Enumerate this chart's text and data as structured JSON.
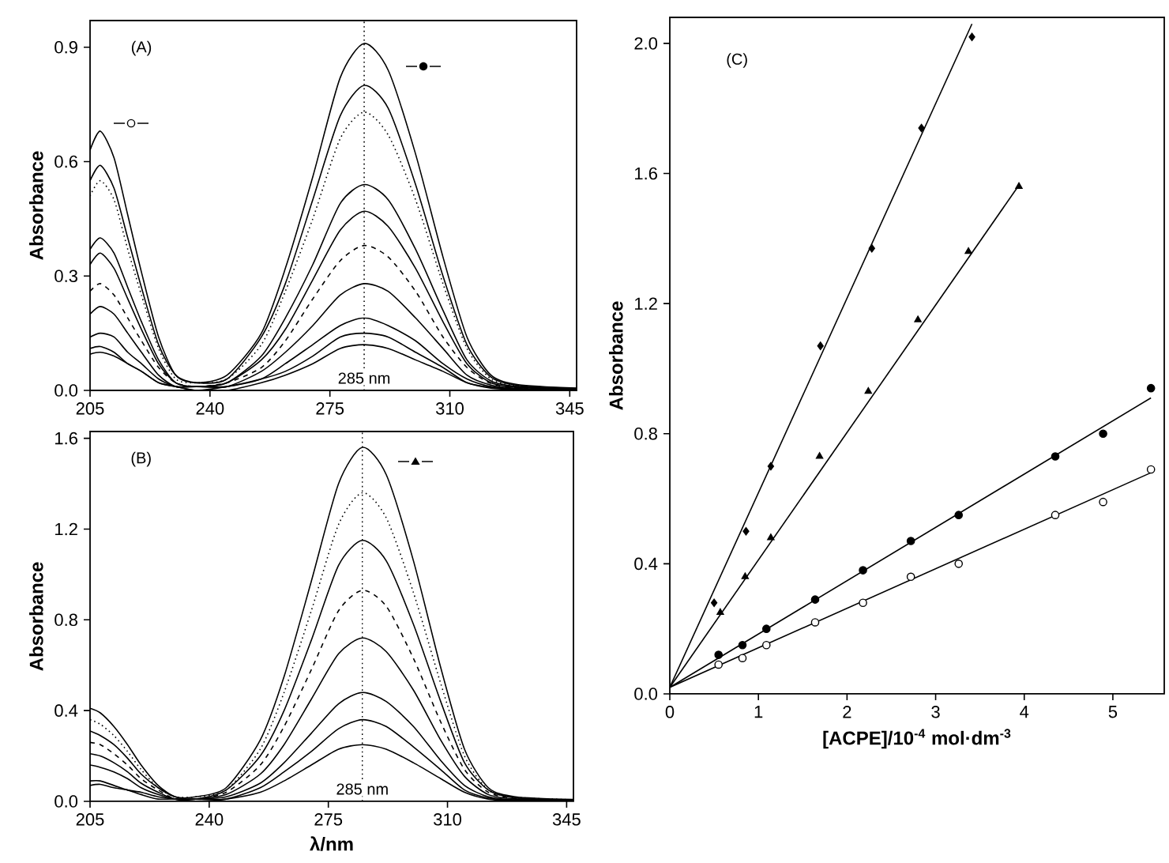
{
  "chart_data": [
    {
      "type": "line",
      "ylabel": "Absorbance",
      "annotations": [
        "(A)"
      ],
      "x": [
        205,
        208,
        212,
        216,
        220,
        225,
        230,
        236,
        245,
        255,
        262,
        270,
        278,
        285,
        292,
        300,
        308,
        315,
        322,
        330,
        347
      ],
      "xlim": [
        205,
        347
      ],
      "xticks": [
        205,
        240,
        275,
        310,
        345
      ],
      "ylim": [
        0,
        0.97
      ],
      "yticks": [
        {
          "value": 0,
          "label": "0.0"
        },
        {
          "value": 0.3,
          "label": "0.3"
        },
        {
          "value": 0.6,
          "label": "0.6"
        },
        {
          "value": 0.9,
          "label": "0.9"
        }
      ],
      "ref_lines": [
        {
          "axis": "x",
          "value": 285,
          "label": "285 nm",
          "line_style": "dotted"
        }
      ],
      "series": [
        {
          "color": "#000000",
          "line_style": "solid",
          "values": [
            0.63,
            0.68,
            0.61,
            0.46,
            0.31,
            0.14,
            0.04,
            0.02,
            0.04,
            0.15,
            0.32,
            0.56,
            0.82,
            0.91,
            0.84,
            0.62,
            0.35,
            0.14,
            0.04,
            0.015,
            0.006
          ]
        },
        {
          "color": "#000000",
          "line_style": "solid",
          "values": [
            0.55,
            0.59,
            0.53,
            0.4,
            0.27,
            0.12,
            0.04,
            0.02,
            0.03,
            0.14,
            0.28,
            0.5,
            0.72,
            0.8,
            0.74,
            0.54,
            0.3,
            0.12,
            0.035,
            0.013,
            0.005
          ]
        },
        {
          "color": "#000000",
          "line_style": "dotted",
          "values": [
            0.51,
            0.55,
            0.5,
            0.37,
            0.25,
            0.11,
            0.03,
            0.02,
            0.03,
            0.12,
            0.26,
            0.45,
            0.66,
            0.73,
            0.67,
            0.5,
            0.28,
            0.11,
            0.03,
            0.012,
            0.004
          ]
        },
        {
          "color": "#000000",
          "line_style": "solid",
          "values": [
            0.37,
            0.4,
            0.36,
            0.27,
            0.18,
            0.08,
            0.02,
            0.01,
            0.02,
            0.09,
            0.19,
            0.33,
            0.49,
            0.54,
            0.5,
            0.37,
            0.21,
            0.08,
            0.025,
            0.01,
            0.003
          ]
        },
        {
          "color": "#000000",
          "line_style": "solid",
          "values": [
            0.33,
            0.36,
            0.32,
            0.24,
            0.16,
            0.07,
            0.02,
            0.01,
            0.02,
            0.08,
            0.16,
            0.29,
            0.42,
            0.47,
            0.43,
            0.32,
            0.18,
            0.07,
            0.02,
            0.008,
            0.002
          ]
        },
        {
          "color": "#000000",
          "line_style": "dashed",
          "values": [
            0.26,
            0.28,
            0.25,
            0.19,
            0.13,
            0.06,
            0.02,
            0.01,
            0.02,
            0.06,
            0.13,
            0.24,
            0.34,
            0.38,
            0.35,
            0.26,
            0.14,
            0.06,
            0.018,
            0.007,
            0.002
          ]
        },
        {
          "color": "#000000",
          "line_style": "solid",
          "values": [
            0.2,
            0.22,
            0.2,
            0.15,
            0.1,
            0.04,
            0.01,
            0.01,
            0.01,
            0.05,
            0.1,
            0.17,
            0.25,
            0.28,
            0.26,
            0.19,
            0.11,
            0.04,
            0.014,
            0.005,
            0.001
          ]
        },
        {
          "color": "#000000",
          "line_style": "solid",
          "values": [
            0.14,
            0.15,
            0.14,
            0.1,
            0.07,
            0.03,
            0.01,
            0.01,
            0.01,
            0.03,
            0.07,
            0.12,
            0.17,
            0.19,
            0.17,
            0.13,
            0.07,
            0.03,
            0.01,
            0.004,
            0.001
          ]
        },
        {
          "color": "#000000",
          "line_style": "solid",
          "values": [
            0.11,
            0.115,
            0.1,
            0.07,
            0.05,
            0.02,
            0.01,
            0,
            0.01,
            0.03,
            0.05,
            0.09,
            0.14,
            0.15,
            0.14,
            0.1,
            0.06,
            0.02,
            0.008,
            0.003,
            0
          ]
        },
        {
          "color": "#000000",
          "line_style": "solid",
          "values": [
            0.095,
            0.1,
            0.09,
            0.07,
            0.05,
            0.02,
            0.01,
            0,
            0,
            0.02,
            0.04,
            0.07,
            0.11,
            0.12,
            0.11,
            0.08,
            0.05,
            0.02,
            0.006,
            0.002,
            0
          ]
        }
      ]
    },
    {
      "type": "line",
      "ylabel": "Absorbance",
      "xlabel": "λ/nm",
      "annotations": [
        "(B)"
      ],
      "x": [
        205,
        208,
        212,
        216,
        220,
        225,
        230,
        236,
        245,
        255,
        262,
        270,
        278,
        285,
        292,
        300,
        308,
        315,
        322,
        330,
        347
      ],
      "xlim": [
        205,
        347
      ],
      "xticks": [
        205,
        240,
        275,
        310,
        345
      ],
      "ylim": [
        0,
        1.63
      ],
      "yticks": [
        {
          "value": 0,
          "label": "0.0"
        },
        {
          "value": 0.4,
          "label": "0.4"
        },
        {
          "value": 0.8,
          "label": "0.8"
        },
        {
          "value": 1.2,
          "label": "1.2"
        },
        {
          "value": 1.6,
          "label": "1.6"
        }
      ],
      "ref_lines": [
        {
          "axis": "x",
          "value": 285,
          "label": "285 nm",
          "line_style": "dotted"
        }
      ],
      "series": [
        {
          "color": "#000000",
          "line_style": "solid",
          "values": [
            0.41,
            0.39,
            0.33,
            0.25,
            0.16,
            0.07,
            0.02,
            0.02,
            0.06,
            0.27,
            0.55,
            0.97,
            1.4,
            1.56,
            1.44,
            1.06,
            0.59,
            0.23,
            0.06,
            0.02,
            0.008
          ]
        },
        {
          "color": "#000000",
          "line_style": "dotted",
          "values": [
            0.36,
            0.34,
            0.29,
            0.22,
            0.14,
            0.06,
            0.02,
            0.02,
            0.05,
            0.23,
            0.48,
            0.84,
            1.22,
            1.36,
            1.25,
            0.92,
            0.52,
            0.2,
            0.05,
            0.018,
            0.007
          ]
        },
        {
          "color": "#000000",
          "line_style": "solid",
          "values": [
            0.31,
            0.29,
            0.25,
            0.19,
            0.12,
            0.06,
            0.02,
            0.01,
            0.05,
            0.2,
            0.4,
            0.71,
            1.04,
            1.15,
            1.06,
            0.78,
            0.44,
            0.17,
            0.05,
            0.015,
            0.006
          ]
        },
        {
          "color": "#000000",
          "line_style": "dashed",
          "values": [
            0.26,
            0.25,
            0.21,
            0.16,
            0.1,
            0.05,
            0.01,
            0.01,
            0.04,
            0.16,
            0.33,
            0.58,
            0.84,
            0.93,
            0.86,
            0.63,
            0.35,
            0.14,
            0.04,
            0.012,
            0.005
          ]
        },
        {
          "color": "#000000",
          "line_style": "solid",
          "values": [
            0.21,
            0.2,
            0.17,
            0.13,
            0.08,
            0.04,
            0.01,
            0.01,
            0.03,
            0.12,
            0.25,
            0.45,
            0.65,
            0.72,
            0.66,
            0.49,
            0.27,
            0.11,
            0.03,
            0.01,
            0.004
          ]
        },
        {
          "color": "#000000",
          "line_style": "solid",
          "values": [
            0.16,
            0.15,
            0.13,
            0.1,
            0.06,
            0.03,
            0.01,
            0.01,
            0.02,
            0.08,
            0.17,
            0.3,
            0.43,
            0.48,
            0.44,
            0.33,
            0.18,
            0.07,
            0.02,
            0.007,
            0.003
          ]
        },
        {
          "color": "#000000",
          "line_style": "solid",
          "values": [
            0.09,
            0.09,
            0.07,
            0.05,
            0.04,
            0.02,
            0.01,
            0.01,
            0.01,
            0.06,
            0.13,
            0.22,
            0.32,
            0.36,
            0.33,
            0.24,
            0.14,
            0.05,
            0.015,
            0.005,
            0.002
          ]
        },
        {
          "color": "#000000",
          "line_style": "solid",
          "values": [
            0.07,
            0.075,
            0.06,
            0.05,
            0.03,
            0.01,
            0.01,
            0,
            0.01,
            0.04,
            0.09,
            0.16,
            0.23,
            0.25,
            0.23,
            0.17,
            0.1,
            0.04,
            0.01,
            0.003,
            0
          ]
        }
      ]
    },
    {
      "type": "scatter",
      "ylabel": "Absorbance",
      "xlabel": "[ACPE]/10$^{-4}$ mol·dm$^{-3}$",
      "annotations": [
        "(C)"
      ],
      "xlim": [
        0,
        5.58
      ],
      "xticks": [
        0,
        1,
        2,
        3,
        4,
        5
      ],
      "ylim": [
        0,
        2.08
      ],
      "yticks": [
        {
          "value": 0,
          "label": "0.0"
        },
        {
          "value": 0.4,
          "label": "0.4"
        },
        {
          "value": 0.8,
          "label": "0.8"
        },
        {
          "value": 1.2,
          "label": "1.2"
        },
        {
          "value": 1.6,
          "label": "1.6"
        },
        {
          "value": 2.0,
          "label": "2.0"
        }
      ],
      "series": [
        {
          "type": "scatter",
          "marker": "diamond",
          "color": "#000000",
          "x": [
            0.5,
            0.86,
            1.14,
            1.7,
            2.28,
            2.84,
            3.41
          ],
          "values": [
            0.28,
            0.5,
            0.7,
            1.07,
            1.37,
            1.74,
            2.02
          ]
        },
        {
          "type": "scatter",
          "marker": "triangle",
          "color": "#000000",
          "x": [
            0.57,
            0.85,
            1.14,
            1.69,
            2.24,
            2.8,
            3.37,
            3.94
          ],
          "values": [
            0.25,
            0.36,
            0.48,
            0.73,
            0.93,
            1.15,
            1.36,
            1.56
          ]
        },
        {
          "type": "scatter",
          "marker": "circle",
          "color": "#000000",
          "x": [
            0.55,
            0.82,
            1.09,
            1.64,
            2.18,
            2.72,
            3.26,
            4.35,
            4.89,
            5.43
          ],
          "values": [
            0.12,
            0.15,
            0.2,
            0.29,
            0.38,
            0.47,
            0.55,
            0.73,
            0.8,
            0.94
          ]
        },
        {
          "type": "scatter",
          "marker": "circle",
          "color": "#ffffff",
          "x": [
            0.55,
            0.82,
            1.09,
            1.64,
            2.18,
            2.72,
            3.26,
            4.35,
            4.89,
            5.43
          ],
          "values": [
            0.09,
            0.11,
            0.15,
            0.22,
            0.28,
            0.36,
            0.4,
            0.55,
            0.59,
            0.69
          ]
        },
        {
          "type": "line",
          "color": "#000000",
          "line_style": "solid",
          "x": [
            0,
            3.41
          ],
          "values": [
            0.02,
            2.06
          ]
        },
        {
          "type": "line",
          "color": "#000000",
          "line_style": "solid",
          "x": [
            0,
            3.93
          ],
          "values": [
            0.02,
            1.56
          ]
        },
        {
          "type": "line",
          "color": "#000000",
          "line_style": "solid",
          "x": [
            0,
            5.43
          ],
          "values": [
            0.02,
            0.91
          ]
        },
        {
          "type": "line",
          "color": "#000000",
          "line_style": "solid",
          "x": [
            0,
            5.43
          ],
          "values": [
            0.02,
            0.68
          ]
        }
      ]
    }
  ]
}
